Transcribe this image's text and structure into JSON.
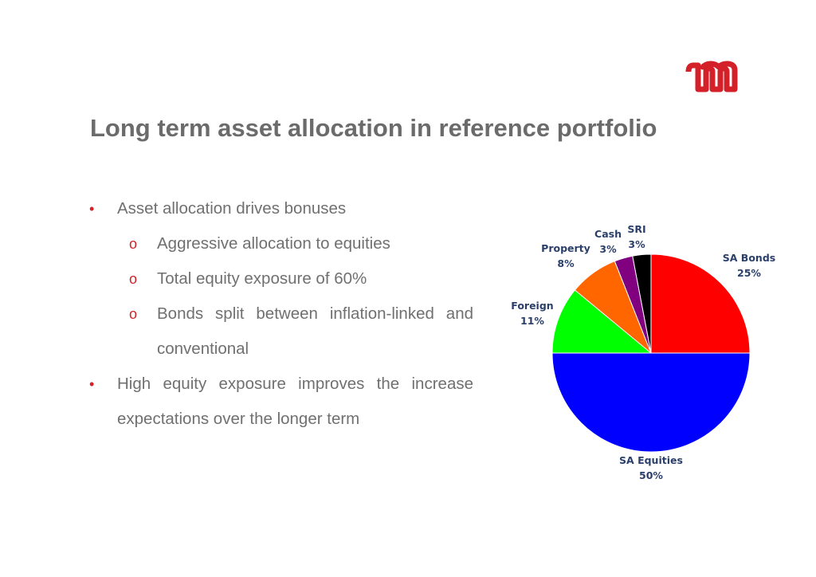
{
  "slide": {
    "title": "Long term asset allocation in reference portfolio"
  },
  "brand": {
    "accent": "#d32029",
    "logo_icon": "m-logo-icon"
  },
  "bullets": [
    {
      "level": 1,
      "marker": "•",
      "text": "Asset allocation drives bonuses"
    },
    {
      "level": 2,
      "marker": "o",
      "text": "Aggressive allocation to equities"
    },
    {
      "level": 2,
      "marker": "o",
      "text": "Total equity exposure of 60%"
    },
    {
      "level": 2,
      "marker": "o",
      "text": "Bonds split between inflation-linked and conventional"
    },
    {
      "level": 1,
      "marker": "•",
      "text": "High equity exposure improves the increase expectations over the longer term"
    }
  ],
  "chart_data": {
    "type": "pie",
    "start": "top, clockwise",
    "slices": [
      {
        "name": "SA Bonds",
        "value": 25,
        "label": "25%",
        "color": "#ff0000"
      },
      {
        "name": "SA Equities",
        "value": 50,
        "label": "50%",
        "color": "#0000ff"
      },
      {
        "name": "Foreign",
        "value": 11,
        "label": "11%",
        "color": "#00ff00"
      },
      {
        "name": "Property",
        "value": 8,
        "label": "8%",
        "color": "#ff6600"
      },
      {
        "name": "Cash",
        "value": 3,
        "label": "3%",
        "color": "#800080"
      },
      {
        "name": "SRI",
        "value": 3,
        "label": "3%",
        "color": "#000000"
      }
    ]
  }
}
